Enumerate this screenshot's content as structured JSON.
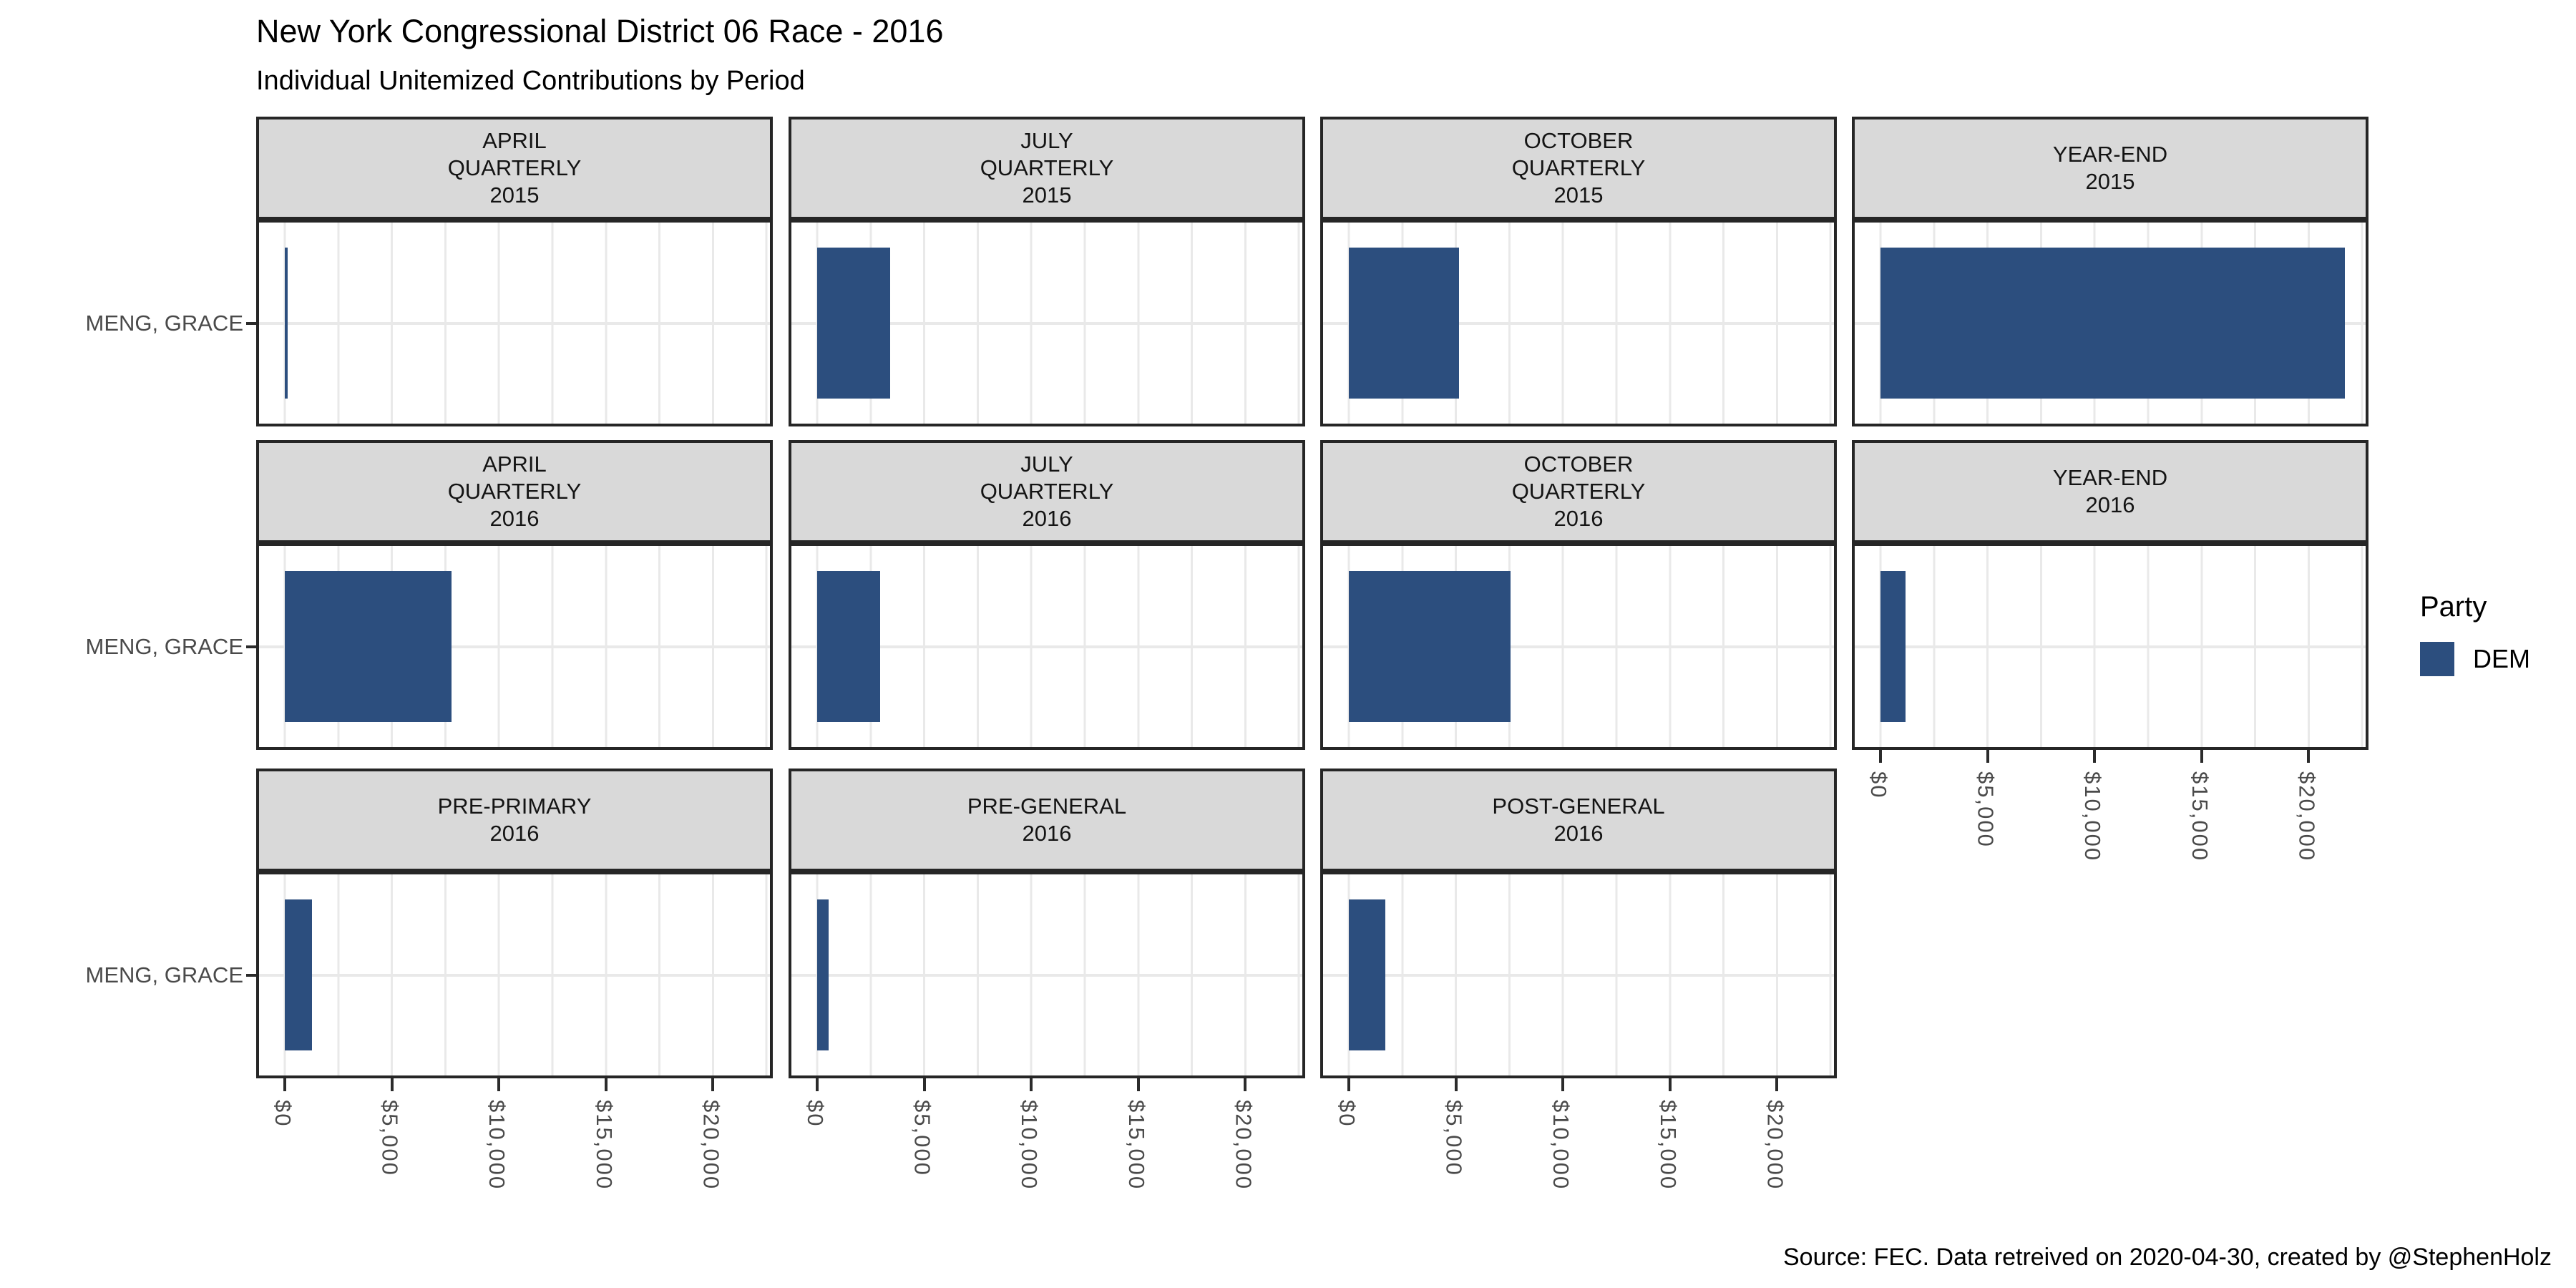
{
  "header": {
    "title": "New York Congressional District 06 Race - 2016",
    "subtitle": "Individual Unitemized Contributions by Period"
  },
  "footer": {
    "caption": "Source: FEC. Data retreived on 2020-04-30, created by @StephenHolz"
  },
  "y_axis": {
    "category_label": "MENG, GRACE"
  },
  "legend": {
    "title": "Party",
    "entries": [
      {
        "label": "DEM",
        "color": "#2C4E7E"
      }
    ]
  },
  "chart_data": {
    "type": "bar",
    "orientation": "horizontal",
    "title": "New York Congressional District 06 Race - 2016",
    "subtitle": "Individual Unitemized Contributions by Period",
    "caption": "Source: FEC. Data retreived on 2020-04-30, created by @StephenHolz",
    "category": "MENG, GRACE",
    "series_name": "DEM",
    "bar_color": "#2C4E7E",
    "xlim": [
      0,
      22500
    ],
    "x_ticks": [
      0,
      5000,
      10000,
      15000,
      20000
    ],
    "x_tick_labels": [
      "$0",
      "$5,000",
      "$10,000",
      "$15,000",
      "$20,000"
    ],
    "minor_gridline_step": 2500,
    "grid": "on",
    "legend_position": "right",
    "facets": [
      {
        "period": "APRIL\nQUARTERLY\n2015",
        "value": 130
      },
      {
        "period": "JULY\nQUARTERLY\n2015",
        "value": 3400
      },
      {
        "period": "OCTOBER\nQUARTERLY\n2015",
        "value": 5150
      },
      {
        "period": "YEAR-END\n2015",
        "value": 21700
      },
      {
        "period": "APRIL\nQUARTERLY\n2016",
        "value": 7800
      },
      {
        "period": "JULY\nQUARTERLY\n2016",
        "value": 2950
      },
      {
        "period": "OCTOBER\nQUARTERLY\n2016",
        "value": 7550
      },
      {
        "period": "YEAR-END\n2016",
        "value": 1175
      },
      {
        "period": "PRE-PRIMARY\n2016",
        "value": 1270
      },
      {
        "period": "PRE-GENERAL\n2016",
        "value": 530
      },
      {
        "period": "POST-GENERAL\n2016",
        "value": 1690
      }
    ]
  }
}
